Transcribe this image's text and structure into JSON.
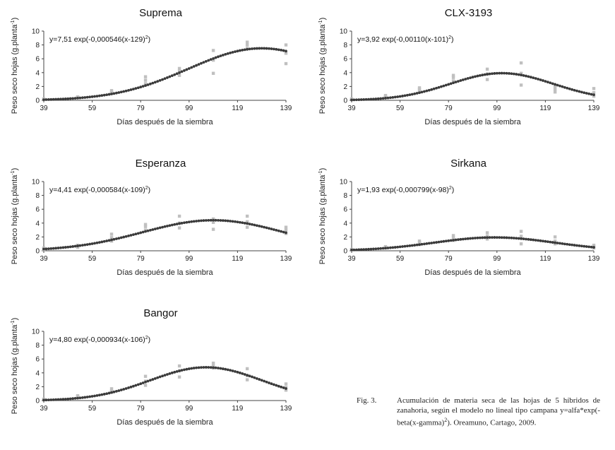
{
  "chart_data": [
    {
      "type": "scatter",
      "title": "Suprema",
      "equation_text": "y=7,51 exp(-0,000546(x-129)",
      "equation_sup": "2",
      "equation_close": ")",
      "model": {
        "alpha": 7.51,
        "beta": 0.000546,
        "gamma": 129
      },
      "xlabel": "Días después de la siembra",
      "ylabel_text": "Peso seco hojas (g.planta",
      "ylabel_sup": "-1",
      "ylabel_close": ")",
      "xlim": [
        39,
        139
      ],
      "ylim": [
        0,
        10
      ],
      "xticks": [
        "39",
        "59",
        "79",
        "99",
        "119",
        "139"
      ],
      "yticks": [
        "0",
        "2",
        "4",
        "6",
        "8",
        "10"
      ],
      "observed": [
        {
          "x": 39,
          "y": [
            0.1,
            0.2,
            0.15
          ]
        },
        {
          "x": 53,
          "y": [
            0.4,
            0.5,
            0.45
          ]
        },
        {
          "x": 67,
          "y": [
            1.0,
            1.2,
            1.4
          ]
        },
        {
          "x": 81,
          "y": [
            2.4,
            2.9,
            3.4
          ]
        },
        {
          "x": 95,
          "y": [
            3.6,
            4.2,
            4.6
          ]
        },
        {
          "x": 109,
          "y": [
            3.9,
            5.8,
            7.2
          ]
        },
        {
          "x": 123,
          "y": [
            7.5,
            8.0,
            8.4
          ]
        },
        {
          "x": 139,
          "y": [
            5.3,
            6.8,
            8.0
          ]
        }
      ]
    },
    {
      "type": "scatter",
      "title": "CLX-3193",
      "equation_text": "y=3,92 exp(-0,00110(x-101)",
      "equation_sup": "2",
      "equation_close": ")",
      "model": {
        "alpha": 3.92,
        "beta": 0.0011,
        "gamma": 101
      },
      "xlabel": "Días después de la siembra",
      "ylabel_text": "Peso seco hojas (g.planta",
      "ylabel_sup": "-1",
      "ylabel_close": ")",
      "xlim": [
        39,
        139
      ],
      "ylim": [
        0,
        10
      ],
      "xticks": [
        "39",
        "59",
        "79",
        "99",
        "119",
        "139"
      ],
      "yticks": [
        "0",
        "2",
        "4",
        "6",
        "8",
        "10"
      ],
      "observed": [
        {
          "x": 39,
          "y": [
            0.1,
            0.2,
            0.15
          ]
        },
        {
          "x": 53,
          "y": [
            0.5,
            0.7,
            0.6
          ]
        },
        {
          "x": 67,
          "y": [
            1.3,
            1.6,
            1.8
          ]
        },
        {
          "x": 81,
          "y": [
            2.8,
            3.3,
            3.6
          ]
        },
        {
          "x": 95,
          "y": [
            3.0,
            3.8,
            4.5
          ]
        },
        {
          "x": 109,
          "y": [
            2.2,
            3.9,
            5.4
          ]
        },
        {
          "x": 123,
          "y": [
            1.2,
            1.6,
            2.0
          ]
        },
        {
          "x": 139,
          "y": [
            0.6,
            1.1,
            1.7
          ]
        }
      ]
    },
    {
      "type": "scatter",
      "title": "Esperanza",
      "equation_text": "y=4,41 exp(-0,000584(x-109)",
      "equation_sup": "2",
      "equation_close": ")",
      "model": {
        "alpha": 4.41,
        "beta": 0.000584,
        "gamma": 109
      },
      "xlabel": "Días después de la siembra",
      "ylabel_text": "Peso seco hojas (g.planta",
      "ylabel_sup": "-1",
      "ylabel_close": ")",
      "xlim": [
        39,
        139
      ],
      "ylim": [
        0,
        10
      ],
      "xticks": [
        "39",
        "59",
        "79",
        "99",
        "119",
        "139"
      ],
      "yticks": [
        "0",
        "2",
        "4",
        "6",
        "8",
        "10"
      ],
      "observed": [
        {
          "x": 39,
          "y": [
            0.2,
            0.4,
            0.3
          ]
        },
        {
          "x": 53,
          "y": [
            0.5,
            0.8,
            0.7
          ]
        },
        {
          "x": 67,
          "y": [
            1.4,
            1.9,
            2.4
          ]
        },
        {
          "x": 81,
          "y": [
            3.0,
            3.5,
            3.8
          ]
        },
        {
          "x": 95,
          "y": [
            3.3,
            4.0,
            5.0
          ]
        },
        {
          "x": 109,
          "y": [
            3.1,
            4.1,
            4.6
          ]
        },
        {
          "x": 123,
          "y": [
            3.4,
            4.2,
            5.0
          ]
        },
        {
          "x": 139,
          "y": [
            2.5,
            3.0,
            3.4
          ]
        }
      ]
    },
    {
      "type": "scatter",
      "title": "Sirkana",
      "equation_text": "y=1,93 exp(-0,000799(x-98)",
      "equation_sup": "2",
      "equation_close": ")",
      "model": {
        "alpha": 1.93,
        "beta": 0.000799,
        "gamma": 98
      },
      "xlabel": "Días después de la siembra",
      "ylabel_text": "Peso seco hojas (g.planta",
      "ylabel_sup": "-1",
      "ylabel_close": ")",
      "xlim": [
        39,
        139
      ],
      "ylim": [
        0,
        10
      ],
      "xticks": [
        "39",
        "59",
        "79",
        "99",
        "119",
        "139"
      ],
      "yticks": [
        "0",
        "2",
        "4",
        "6",
        "8",
        "10"
      ],
      "observed": [
        {
          "x": 39,
          "y": [
            0.1,
            0.2,
            0.15
          ]
        },
        {
          "x": 53,
          "y": [
            0.4,
            0.6,
            0.5
          ]
        },
        {
          "x": 67,
          "y": [
            0.9,
            1.2,
            1.4
          ]
        },
        {
          "x": 81,
          "y": [
            1.5,
            1.9,
            2.2
          ]
        },
        {
          "x": 95,
          "y": [
            1.7,
            2.1,
            2.6
          ]
        },
        {
          "x": 109,
          "y": [
            1.0,
            2.1,
            2.8
          ]
        },
        {
          "x": 123,
          "y": [
            1.0,
            1.4,
            2.0
          ]
        },
        {
          "x": 139,
          "y": [
            0.4,
            0.6,
            0.8
          ]
        }
      ]
    },
    {
      "type": "scatter",
      "title": "Bangor",
      "equation_text": "y=4,80 exp(-0,000934(x-106)",
      "equation_sup": "2",
      "equation_close": ")",
      "model": {
        "alpha": 4.8,
        "beta": 0.000934,
        "gamma": 106
      },
      "xlabel": "Días después de la siembra",
      "ylabel_text": "Peso seco hojas (g.planta",
      "ylabel_sup": "-1",
      "ylabel_close": ")",
      "xlim": [
        39,
        139
      ],
      "ylim": [
        0,
        10
      ],
      "xticks": [
        "39",
        "59",
        "79",
        "99",
        "119",
        "139"
      ],
      "yticks": [
        "0",
        "2",
        "4",
        "6",
        "8",
        "10"
      ],
      "observed": [
        {
          "x": 39,
          "y": [
            0.1,
            0.2,
            0.15
          ]
        },
        {
          "x": 53,
          "y": [
            0.5,
            0.7,
            0.6
          ]
        },
        {
          "x": 67,
          "y": [
            1.2,
            1.4,
            1.7
          ]
        },
        {
          "x": 81,
          "y": [
            2.2,
            2.8,
            3.5
          ]
        },
        {
          "x": 95,
          "y": [
            3.4,
            4.3,
            5.0
          ]
        },
        {
          "x": 109,
          "y": [
            4.7,
            5.0,
            5.4
          ]
        },
        {
          "x": 123,
          "y": [
            3.0,
            3.6,
            4.6
          ]
        },
        {
          "x": 139,
          "y": [
            1.5,
            1.9,
            2.4
          ]
        }
      ]
    }
  ],
  "caption": {
    "label": "Fig. 3.",
    "text_main": "Acumulación de materia seca de las hojas de 5 híbridos de zanahoria, según el modelo no lineal tipo campana y=alfa*exp(-beta(x-gamma)",
    "text_sup": "2",
    "text_end": "). Oreamuno, Cartago, 2009."
  },
  "colors": {
    "observed": "#c0c0c0",
    "fitted": "#3a3a3a",
    "axis": "#444444"
  }
}
